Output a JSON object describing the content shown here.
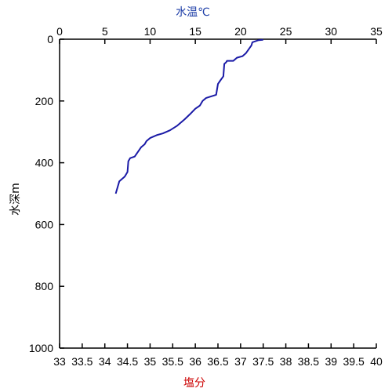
{
  "chart_data": {
    "type": "line",
    "top_axis": {
      "label": "水温℃",
      "label_color": "#1f3fa8",
      "range": [
        0,
        35
      ],
      "ticks": [
        "0",
        "5",
        "10",
        "15",
        "20",
        "25",
        "30",
        "35"
      ]
    },
    "bottom_axis": {
      "label": "塩分",
      "label_color": "#cc0000",
      "range": [
        33,
        40
      ],
      "ticks": [
        "33",
        "33.5",
        "34",
        "34.5",
        "35",
        "35.5",
        "36",
        "36.5",
        "37",
        "37.5",
        "38",
        "38.5",
        "39",
        "39.5",
        "40"
      ]
    },
    "y_axis": {
      "label": "水深m",
      "label_color": "#000000",
      "range": [
        0,
        1000
      ],
      "inverted": true,
      "ticks": [
        "0",
        "200",
        "400",
        "600",
        "800",
        "1000"
      ]
    },
    "grid": false,
    "series": [
      {
        "axis": "top_axis",
        "color": "#1a1aa6",
        "x": [
          22.5,
          22.0,
          21.3,
          21.2,
          20.6,
          20.2,
          19.6,
          19.2,
          18.5,
          18.4,
          18.2,
          18.1,
          17.8,
          17.5,
          17.3,
          16.2,
          16.0,
          15.8,
          15.5,
          15.0,
          14.5,
          13.8,
          13.0,
          12.2,
          11.4,
          10.8,
          10.0,
          9.6,
          9.4,
          9.0,
          8.3,
          7.8,
          7.6,
          7.5,
          7.2,
          6.6,
          6.2
        ],
        "y": [
          2,
          3,
          10,
          20,
          45,
          55,
          60,
          70,
          70,
          75,
          80,
          120,
          132,
          145,
          180,
          190,
          195,
          200,
          215,
          225,
          240,
          260,
          280,
          295,
          305,
          310,
          320,
          330,
          340,
          350,
          380,
          385,
          395,
          430,
          445,
          460,
          500
        ]
      }
    ]
  }
}
